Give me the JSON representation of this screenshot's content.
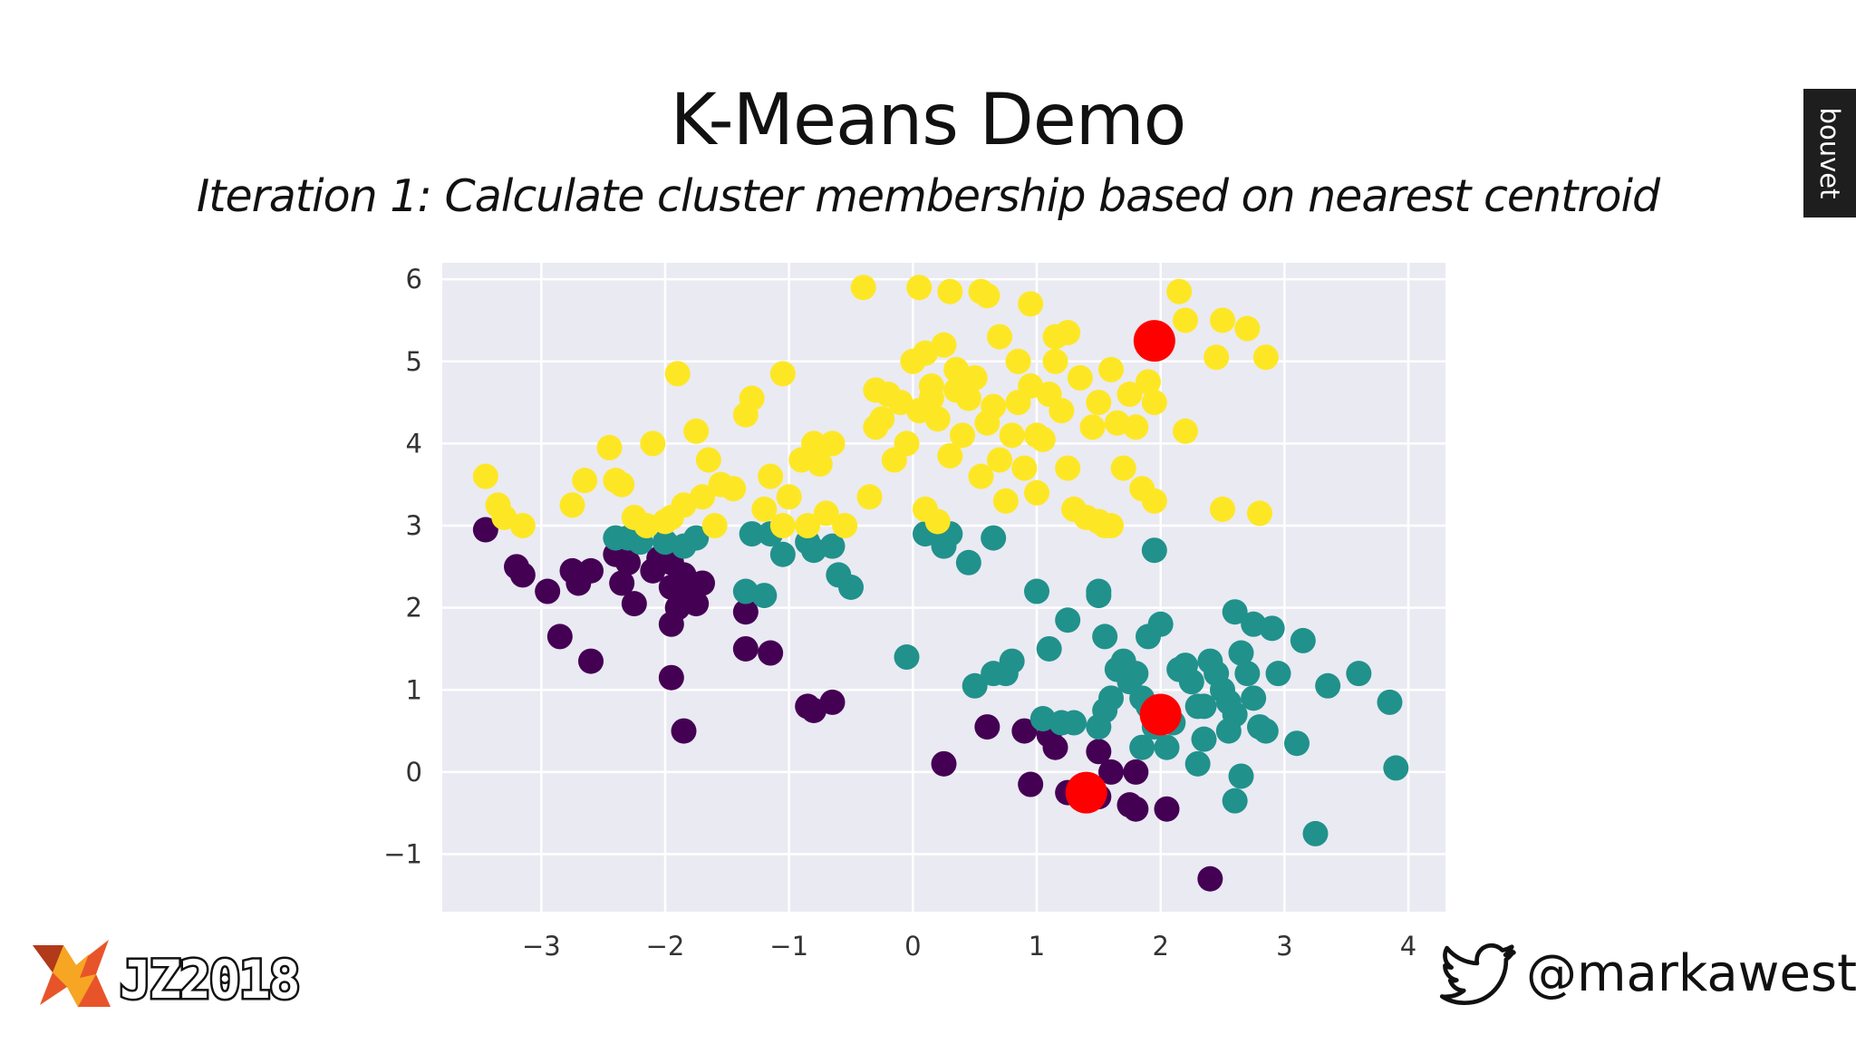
{
  "slide": {
    "title": "K-Means Demo",
    "subtitle": "Iteration 1: Calculate cluster membership based on nearest centroid",
    "brand_tab": "bouvet",
    "event_logo_text": "JZ2018",
    "twitter_handle": "@markawest"
  },
  "colors": {
    "plot_background": "#eaeaf2",
    "grid": "#ffffff",
    "cluster_purple": "#440154",
    "cluster_teal": "#21918c",
    "cluster_yellow": "#fde725",
    "centroid": "#ff0000"
  },
  "chart_data": {
    "type": "scatter",
    "title": "",
    "xlabel": "",
    "ylabel": "",
    "xlim": [
      -3.8,
      4.3
    ],
    "ylim": [
      -1.7,
      6.2
    ],
    "xticks": [
      -3,
      -2,
      -1,
      0,
      1,
      2,
      3,
      4
    ],
    "yticks": [
      -1,
      0,
      1,
      2,
      3,
      4,
      5,
      6
    ],
    "grid": true,
    "legend": "none",
    "series": [
      {
        "color": "#440154",
        "points": [
          [
            -3.45,
            2.95
          ],
          [
            -3.2,
            2.5
          ],
          [
            -3.15,
            2.4
          ],
          [
            -2.95,
            2.2
          ],
          [
            -2.85,
            1.65
          ],
          [
            -2.6,
            1.35
          ],
          [
            -2.75,
            2.45
          ],
          [
            -2.7,
            2.3
          ],
          [
            -2.6,
            2.45
          ],
          [
            -2.4,
            2.65
          ],
          [
            -2.35,
            2.3
          ],
          [
            -2.3,
            2.55
          ],
          [
            -2.25,
            2.05
          ],
          [
            -2.1,
            2.45
          ],
          [
            -2.05,
            2.6
          ],
          [
            -1.95,
            2.25
          ],
          [
            -1.95,
            2.55
          ],
          [
            -1.9,
            2.0
          ],
          [
            -1.85,
            2.4
          ],
          [
            -1.8,
            2.15
          ],
          [
            -1.75,
            2.05
          ],
          [
            -1.7,
            2.3
          ],
          [
            -1.95,
            1.8
          ],
          [
            -1.95,
            1.15
          ],
          [
            -1.85,
            0.5
          ],
          [
            -1.35,
            1.95
          ],
          [
            -1.35,
            1.5
          ],
          [
            -1.15,
            1.45
          ],
          [
            -0.85,
            0.8
          ],
          [
            -0.8,
            0.75
          ],
          [
            -0.65,
            0.85
          ],
          [
            0.25,
            0.1
          ],
          [
            0.6,
            0.55
          ],
          [
            0.9,
            0.5
          ],
          [
            1.1,
            0.45
          ],
          [
            1.15,
            0.3
          ],
          [
            0.95,
            -0.15
          ],
          [
            1.25,
            -0.25
          ],
          [
            1.5,
            0.25
          ],
          [
            1.5,
            -0.3
          ],
          [
            1.6,
            0.0
          ],
          [
            1.8,
            0.0
          ],
          [
            1.8,
            -0.45
          ],
          [
            1.75,
            -0.4
          ],
          [
            2.05,
            -0.45
          ],
          [
            2.4,
            -1.3
          ]
        ]
      },
      {
        "color": "#21918c",
        "points": [
          [
            -2.4,
            2.85
          ],
          [
            -2.3,
            2.85
          ],
          [
            -2.2,
            2.8
          ],
          [
            -2.0,
            2.8
          ],
          [
            -1.85,
            2.75
          ],
          [
            -1.75,
            2.85
          ],
          [
            -1.3,
            2.9
          ],
          [
            -1.15,
            2.9
          ],
          [
            -1.05,
            2.65
          ],
          [
            -1.35,
            2.2
          ],
          [
            -1.2,
            2.15
          ],
          [
            -0.85,
            2.8
          ],
          [
            -0.8,
            2.7
          ],
          [
            -0.65,
            2.75
          ],
          [
            -0.6,
            2.4
          ],
          [
            -0.5,
            2.25
          ],
          [
            0.1,
            2.9
          ],
          [
            0.25,
            2.75
          ],
          [
            0.3,
            2.9
          ],
          [
            0.45,
            2.55
          ],
          [
            0.65,
            2.85
          ],
          [
            1.0,
            2.2
          ],
          [
            1.25,
            1.85
          ],
          [
            1.1,
            1.5
          ],
          [
            1.5,
            2.2
          ],
          [
            1.5,
            2.15
          ],
          [
            1.55,
            1.65
          ],
          [
            1.95,
            2.7
          ],
          [
            1.9,
            1.65
          ],
          [
            2.0,
            1.8
          ],
          [
            -0.05,
            1.4
          ],
          [
            0.5,
            1.05
          ],
          [
            0.65,
            1.2
          ],
          [
            0.8,
            1.35
          ],
          [
            0.75,
            1.2
          ],
          [
            1.05,
            0.65
          ],
          [
            1.2,
            0.6
          ],
          [
            1.3,
            0.6
          ],
          [
            1.5,
            0.55
          ],
          [
            1.55,
            0.75
          ],
          [
            1.6,
            0.9
          ],
          [
            1.65,
            1.25
          ],
          [
            1.7,
            1.35
          ],
          [
            1.75,
            1.1
          ],
          [
            1.8,
            1.2
          ],
          [
            1.85,
            0.9
          ],
          [
            1.9,
            0.8
          ],
          [
            1.85,
            0.3
          ],
          [
            1.95,
            0.55
          ],
          [
            2.05,
            0.3
          ],
          [
            2.1,
            0.6
          ],
          [
            2.15,
            1.25
          ],
          [
            2.2,
            1.3
          ],
          [
            2.25,
            1.1
          ],
          [
            2.3,
            0.8
          ],
          [
            2.35,
            0.4
          ],
          [
            2.3,
            0.1
          ],
          [
            2.4,
            1.35
          ],
          [
            2.45,
            1.2
          ],
          [
            2.5,
            1.0
          ],
          [
            2.55,
            0.85
          ],
          [
            2.6,
            0.7
          ],
          [
            2.55,
            0.5
          ],
          [
            2.65,
            1.45
          ],
          [
            2.7,
            1.2
          ],
          [
            2.75,
            0.9
          ],
          [
            2.8,
            0.55
          ],
          [
            2.65,
            -0.05
          ],
          [
            2.6,
            -0.35
          ],
          [
            2.6,
            1.95
          ],
          [
            2.75,
            1.8
          ],
          [
            2.9,
            1.75
          ],
          [
            2.85,
            0.5
          ],
          [
            3.1,
            0.35
          ],
          [
            3.15,
            1.6
          ],
          [
            3.35,
            1.05
          ],
          [
            3.6,
            1.2
          ],
          [
            3.85,
            0.85
          ],
          [
            3.9,
            0.05
          ],
          [
            3.25,
            -0.75
          ],
          [
            2.95,
            1.2
          ],
          [
            2.35,
            0.8
          ]
        ]
      },
      {
        "color": "#fde725",
        "points": [
          [
            -3.45,
            3.6
          ],
          [
            -3.35,
            3.25
          ],
          [
            -3.3,
            3.1
          ],
          [
            -3.15,
            3.0
          ],
          [
            -2.75,
            3.25
          ],
          [
            -2.65,
            3.55
          ],
          [
            -2.45,
            3.95
          ],
          [
            -2.4,
            3.55
          ],
          [
            -2.35,
            3.5
          ],
          [
            -2.25,
            3.1
          ],
          [
            -2.15,
            3.0
          ],
          [
            -2.1,
            4.0
          ],
          [
            -2.0,
            3.05
          ],
          [
            -1.95,
            3.1
          ],
          [
            -1.9,
            4.85
          ],
          [
            -1.85,
            3.25
          ],
          [
            -1.75,
            4.15
          ],
          [
            -1.7,
            3.35
          ],
          [
            -1.65,
            3.8
          ],
          [
            -1.6,
            3.0
          ],
          [
            -1.55,
            3.5
          ],
          [
            -1.45,
            3.45
          ],
          [
            -1.35,
            4.35
          ],
          [
            -1.3,
            4.55
          ],
          [
            -1.2,
            3.2
          ],
          [
            -1.15,
            3.6
          ],
          [
            -1.05,
            3.0
          ],
          [
            -1.0,
            3.35
          ],
          [
            -1.05,
            4.85
          ],
          [
            -0.9,
            3.8
          ],
          [
            -0.85,
            3.0
          ],
          [
            -0.8,
            4.0
          ],
          [
            -0.75,
            3.75
          ],
          [
            -0.7,
            3.15
          ],
          [
            -0.65,
            4.0
          ],
          [
            -0.55,
            3.0
          ],
          [
            -0.4,
            5.9
          ],
          [
            -0.35,
            3.35
          ],
          [
            -0.3,
            4.65
          ],
          [
            -0.3,
            4.2
          ],
          [
            -0.2,
            4.6
          ],
          [
            -0.15,
            3.8
          ],
          [
            -0.1,
            4.5
          ],
          [
            -0.05,
            4.0
          ],
          [
            0.0,
            5.0
          ],
          [
            0.05,
            4.4
          ],
          [
            0.1,
            5.1
          ],
          [
            0.15,
            4.7
          ],
          [
            0.2,
            4.3
          ],
          [
            0.25,
            5.2
          ],
          [
            0.3,
            3.85
          ],
          [
            0.35,
            4.65
          ],
          [
            0.4,
            4.1
          ],
          [
            0.45,
            4.55
          ],
          [
            0.5,
            4.8
          ],
          [
            0.55,
            3.6
          ],
          [
            0.6,
            4.25
          ],
          [
            0.65,
            4.45
          ],
          [
            0.7,
            3.8
          ],
          [
            0.75,
            3.3
          ],
          [
            0.8,
            4.1
          ],
          [
            0.85,
            4.5
          ],
          [
            0.9,
            3.7
          ],
          [
            0.95,
            4.7
          ],
          [
            1.0,
            3.4
          ],
          [
            1.05,
            4.05
          ],
          [
            1.1,
            4.6
          ],
          [
            1.15,
            5.0
          ],
          [
            1.2,
            4.4
          ],
          [
            1.25,
            3.7
          ],
          [
            1.3,
            3.2
          ],
          [
            1.35,
            4.8
          ],
          [
            1.4,
            3.1
          ],
          [
            1.45,
            4.2
          ],
          [
            1.5,
            4.5
          ],
          [
            1.55,
            3.0
          ],
          [
            1.6,
            4.9
          ],
          [
            1.65,
            4.25
          ],
          [
            1.7,
            3.7
          ],
          [
            1.75,
            4.6
          ],
          [
            1.8,
            4.2
          ],
          [
            1.85,
            3.45
          ],
          [
            1.9,
            4.75
          ],
          [
            1.95,
            3.3
          ],
          [
            1.95,
            4.5
          ],
          [
            0.05,
            5.9
          ],
          [
            0.3,
            5.85
          ],
          [
            0.55,
            5.85
          ],
          [
            0.6,
            5.8
          ],
          [
            0.95,
            5.7
          ],
          [
            1.15,
            5.3
          ],
          [
            1.25,
            5.35
          ],
          [
            2.15,
            5.85
          ],
          [
            2.2,
            5.5
          ],
          [
            2.5,
            5.5
          ],
          [
            2.7,
            5.4
          ],
          [
            2.45,
            5.05
          ],
          [
            2.85,
            5.05
          ],
          [
            2.2,
            4.15
          ],
          [
            2.5,
            3.2
          ],
          [
            2.8,
            3.15
          ],
          [
            0.1,
            3.2
          ],
          [
            0.2,
            3.05
          ],
          [
            1.6,
            3.0
          ],
          [
            1.5,
            3.05
          ],
          [
            0.7,
            5.3
          ],
          [
            1.0,
            4.1
          ],
          [
            -0.25,
            4.3
          ],
          [
            0.35,
            4.9
          ],
          [
            0.15,
            4.55
          ],
          [
            0.85,
            5.0
          ]
        ]
      },
      {
        "name": "",
        "color": "#ff0000",
        "centroid": true,
        "points": [
          [
            1.95,
            5.25
          ],
          [
            2.0,
            0.7
          ],
          [
            1.4,
            -0.25
          ]
        ]
      }
    ]
  }
}
